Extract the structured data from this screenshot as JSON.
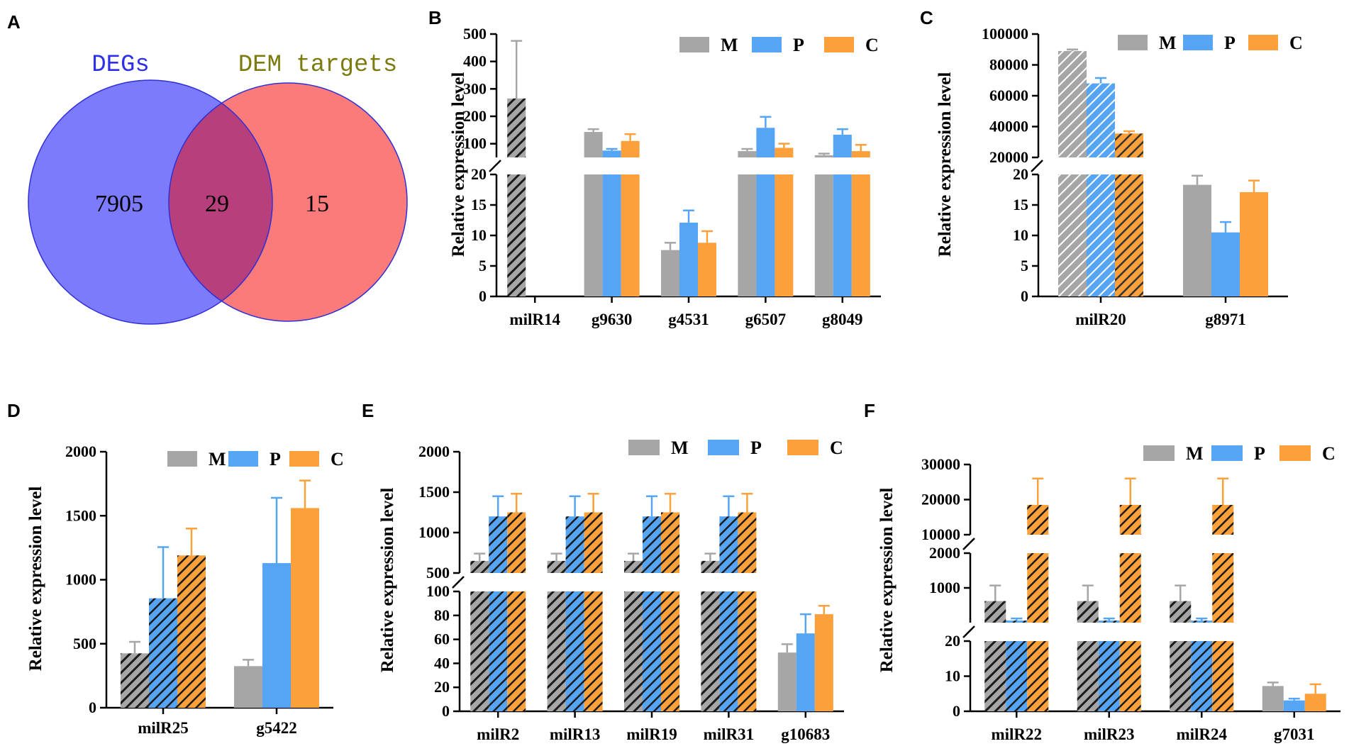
{
  "colors": {
    "M": "#a6a6a6",
    "P": "#56a5f5",
    "C": "#fba03a",
    "venn_left": "#7b7bfb",
    "venn_right": "#fb7b7b",
    "venn_overlap": "#b63f7c",
    "venn_left_text": "#2f2fe8",
    "venn_right_text": "#7b7b10"
  },
  "chart_data": [
    {
      "panel": "A",
      "type": "venn",
      "sets": [
        {
          "name": "DEGs",
          "only": "7905"
        },
        {
          "name": "DEM targets",
          "only": "15"
        }
      ],
      "overlap": "29"
    },
    {
      "panel": "B",
      "type": "bar",
      "legend": [
        "M",
        "P",
        "C"
      ],
      "ylabel": "Relative expression level",
      "categories": [
        "milR14",
        "g9630",
        "g4531",
        "g6507",
        "g8049"
      ],
      "series": [
        {
          "name": "M",
          "values": [
            265,
            143,
            7.6,
            73,
            58
          ],
          "errors": [
            210,
            10,
            1.2,
            8,
            6
          ],
          "hatched": [
            true,
            false,
            false,
            false,
            false
          ]
        },
        {
          "name": "P",
          "values": [
            null,
            75,
            12.1,
            158,
            133
          ],
          "errors": [
            null,
            6,
            2.0,
            40,
            20
          ],
          "hatched": [
            false,
            false,
            false,
            false,
            false
          ]
        },
        {
          "name": "C",
          "values": [
            null,
            110,
            8.8,
            85,
            73
          ],
          "errors": [
            null,
            25,
            1.9,
            15,
            23
          ],
          "hatched": [
            false,
            false,
            false,
            false,
            false
          ]
        }
      ],
      "segments": [
        {
          "range": [
            0,
            20
          ],
          "ticks": [
            0,
            5,
            10,
            15,
            20
          ]
        },
        {
          "range": [
            50,
            500
          ],
          "ticks": [
            100,
            200,
            300,
            400,
            500
          ]
        }
      ]
    },
    {
      "panel": "C",
      "type": "bar",
      "legend": [
        "M",
        "P",
        "C"
      ],
      "ylabel": "Relative expression level",
      "categories": [
        "milR20",
        "g8971"
      ],
      "series": [
        {
          "name": "M",
          "values": [
            89000,
            18.3
          ],
          "errors": [
            1000,
            1.5
          ],
          "hatched": [
            true,
            false
          ]
        },
        {
          "name": "P",
          "values": [
            68000,
            10.5
          ],
          "errors": [
            3500,
            1.7
          ],
          "hatched": [
            true,
            false
          ]
        },
        {
          "name": "C",
          "values": [
            35500,
            17.1
          ],
          "errors": [
            1500,
            1.9
          ],
          "hatched": [
            true,
            false
          ]
        }
      ],
      "segments": [
        {
          "range": [
            0,
            20
          ],
          "ticks": [
            0,
            5,
            10,
            15,
            20
          ]
        },
        {
          "range": [
            20000,
            100000
          ],
          "ticks": [
            20000,
            40000,
            60000,
            80000,
            100000
          ]
        }
      ]
    },
    {
      "panel": "D",
      "type": "bar",
      "legend": [
        "M",
        "P",
        "C"
      ],
      "ylabel": "Relative expression level",
      "categories": [
        "milR25",
        "g5422"
      ],
      "series": [
        {
          "name": "M",
          "values": [
            425,
            325
          ],
          "errors": [
            90,
            50
          ],
          "hatched": [
            true,
            false
          ]
        },
        {
          "name": "P",
          "values": [
            855,
            1130
          ],
          "errors": [
            400,
            510
          ],
          "hatched": [
            true,
            false
          ]
        },
        {
          "name": "C",
          "values": [
            1190,
            1560
          ],
          "errors": [
            210,
            215
          ],
          "hatched": [
            true,
            false
          ]
        }
      ],
      "segments": [
        {
          "range": [
            0,
            2000
          ],
          "ticks": [
            0,
            500,
            1000,
            1500,
            2000
          ]
        }
      ]
    },
    {
      "panel": "E",
      "type": "bar",
      "legend": [
        "M",
        "P",
        "C"
      ],
      "ylabel": "Relative expression level",
      "categories": [
        "milR2",
        "milR13",
        "milR19",
        "milR31",
        "g10683"
      ],
      "series": [
        {
          "name": "M",
          "values": [
            650,
            650,
            650,
            650,
            49
          ],
          "errors": [
            90,
            90,
            90,
            90,
            7
          ],
          "hatched": [
            true,
            true,
            true,
            true,
            false
          ]
        },
        {
          "name": "P",
          "values": [
            1200,
            1200,
            1200,
            1200,
            65
          ],
          "errors": [
            250,
            250,
            250,
            250,
            16
          ],
          "hatched": [
            true,
            true,
            true,
            true,
            false
          ]
        },
        {
          "name": "C",
          "values": [
            1250,
            1250,
            1250,
            1250,
            81
          ],
          "errors": [
            230,
            230,
            230,
            230,
            7
          ],
          "hatched": [
            true,
            true,
            true,
            true,
            false
          ]
        }
      ],
      "segments": [
        {
          "range": [
            0,
            100
          ],
          "ticks": [
            0,
            20,
            40,
            60,
            80,
            100
          ]
        },
        {
          "range": [
            500,
            2000
          ],
          "ticks": [
            500,
            1000,
            1500,
            2000
          ]
        }
      ]
    },
    {
      "panel": "F",
      "type": "bar",
      "legend": [
        "M",
        "P",
        "C"
      ],
      "ylabel": "Relative expression level",
      "categories": [
        "milR22",
        "milR23",
        "milR24",
        "g7031"
      ],
      "series": [
        {
          "name": "M",
          "values": [
            620,
            620,
            620,
            7.2
          ],
          "errors": [
            450,
            450,
            450,
            1.0
          ],
          "hatched": [
            true,
            true,
            true,
            false
          ]
        },
        {
          "name": "P",
          "values": [
            60,
            60,
            60,
            3.1
          ],
          "errors": [
            60,
            60,
            60,
            0.5
          ],
          "hatched": [
            true,
            true,
            true,
            false
          ]
        },
        {
          "name": "C",
          "values": [
            18500,
            18500,
            18500,
            5.0
          ],
          "errors": [
            7500,
            7500,
            7500,
            2.7
          ],
          "hatched": [
            true,
            true,
            true,
            false
          ]
        }
      ],
      "segments": [
        {
          "range": [
            0,
            20
          ],
          "ticks": [
            0,
            10,
            20
          ]
        },
        {
          "range": [
            0,
            2000
          ],
          "ticks": [
            1000,
            2000
          ]
        },
        {
          "range": [
            10000,
            30000
          ],
          "ticks": [
            10000,
            20000,
            30000
          ]
        }
      ]
    }
  ]
}
